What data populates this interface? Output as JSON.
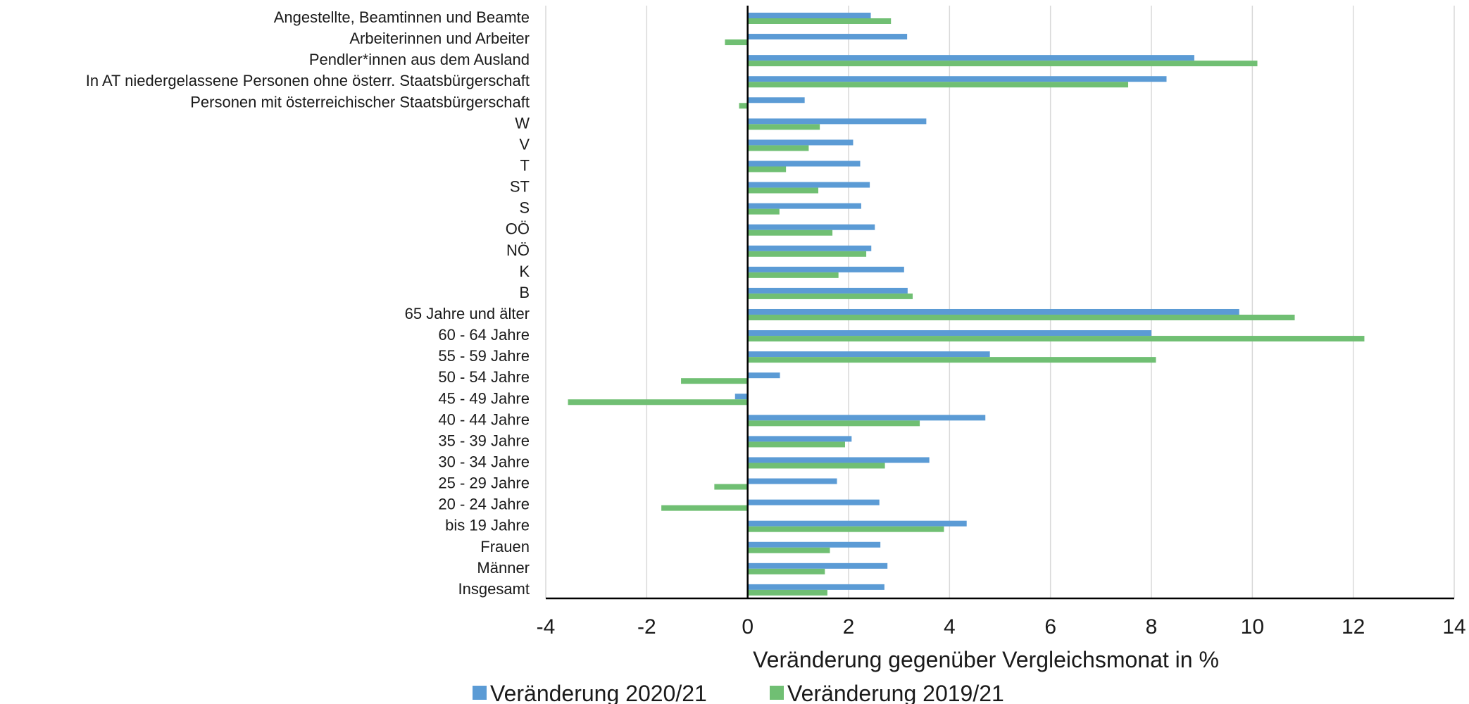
{
  "chart_data": {
    "type": "bar",
    "orientation": "horizontal",
    "categories": [
      "Angestellte, Beamtinnen und Beamte",
      "Arbeiterinnen und Arbeiter",
      "Pendler*innen aus dem Ausland",
      "In AT niedergelassene Personen ohne österr. Staatsbürgerschaft",
      "Personen mit österreichischer Staatsbürgerschaft",
      "W",
      "V",
      "T",
      "ST",
      "S",
      "OÖ",
      "NÖ",
      "K",
      "B",
      "65 Jahre und älter",
      "60 - 64 Jahre",
      "55 - 59 Jahre",
      "50 - 54 Jahre",
      "45 - 49 Jahre",
      "40 - 44 Jahre",
      "35 - 39 Jahre",
      "30 - 34 Jahre",
      "25 - 29 Jahre",
      "20 - 24 Jahre",
      "bis 19 Jahre",
      "Frauen",
      "Männer",
      "Insgesamt"
    ],
    "series": [
      {
        "name": "Veränderung 2020/21",
        "color": "#5b9bd5",
        "values": [
          2.44,
          3.16,
          8.85,
          8.3,
          1.13,
          3.54,
          2.09,
          2.23,
          2.42,
          2.25,
          2.52,
          2.45,
          3.1,
          3.17,
          9.74,
          8.0,
          4.8,
          0.64,
          -0.25,
          4.71,
          2.06,
          3.6,
          1.77,
          2.61,
          4.34,
          2.63,
          2.77,
          2.71
        ]
      },
      {
        "name": "Veränderung 2019/21",
        "color": "#70bf73",
        "values": [
          2.84,
          -0.45,
          10.1,
          7.54,
          -0.17,
          1.43,
          1.21,
          0.76,
          1.4,
          0.63,
          1.68,
          2.35,
          1.8,
          3.27,
          10.84,
          12.22,
          8.09,
          -1.32,
          -3.56,
          3.41,
          1.93,
          2.72,
          -0.66,
          -1.71,
          3.89,
          1.63,
          1.53,
          1.58
        ]
      }
    ],
    "xlabel": "Veränderung gegenüber Vergleichsmonat in %",
    "xlim": [
      -4,
      14
    ],
    "xticks": [
      -4,
      -2,
      0,
      2,
      4,
      6,
      8,
      10,
      12,
      14
    ],
    "grid": true,
    "legend_position": "bottom"
  }
}
